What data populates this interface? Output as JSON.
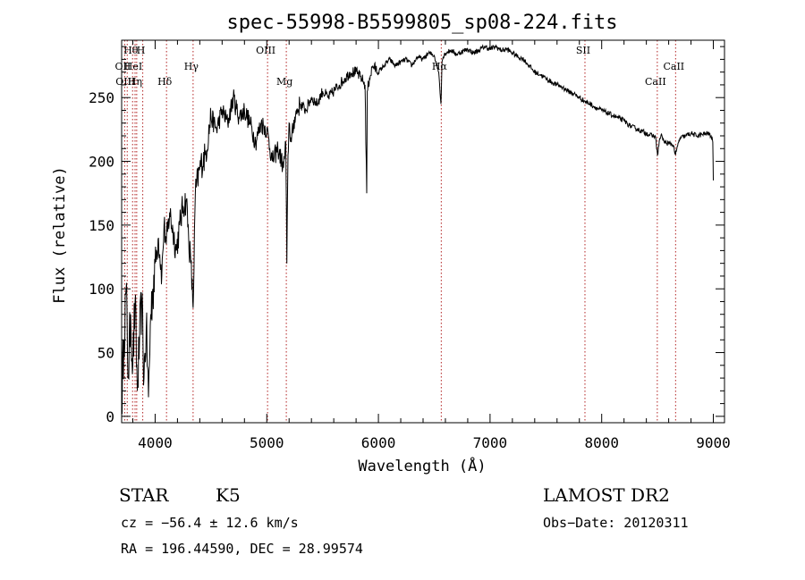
{
  "chart_data": {
    "type": "line",
    "title": "spec-55998-B5599805_sp08-224.fits",
    "xlabel": "Wavelength (Å)",
    "ylabel": "Flux (relative)",
    "xlim": [
      3700,
      9100
    ],
    "ylim": [
      -5,
      295
    ],
    "xticks": [
      4000,
      5000,
      6000,
      7000,
      8000,
      9000
    ],
    "xtick_labels": [
      "4000",
      "5000",
      "6000",
      "7000",
      "8000",
      "9000"
    ],
    "yticks": [
      0,
      50,
      100,
      150,
      200,
      250
    ],
    "ytick_labels": [
      "0",
      "50",
      "100",
      "150",
      "200",
      "250"
    ],
    "grid": false,
    "series": [
      {
        "x": [
          3700,
          3720,
          3740,
          3760,
          3780,
          3800,
          3820,
          3840,
          3860,
          3880,
          3900,
          3920,
          3940,
          3960,
          3980,
          4000,
          4030,
          4060,
          4080,
          4100,
          4130,
          4160,
          4190,
          4220,
          4250,
          4280,
          4300,
          4320,
          4340,
          4360,
          4400,
          4450,
          4500,
          4550,
          4600,
          4650,
          4700,
          4750,
          4800,
          4850,
          4900,
          4950,
          5000,
          5050,
          5100,
          5150,
          5170,
          5180,
          5190,
          5200,
          5220,
          5250,
          5300,
          5350,
          5400,
          5450,
          5500,
          5550,
          5600,
          5650,
          5700,
          5750,
          5800,
          5850,
          5880,
          5895,
          5900,
          5920,
          5950,
          6000,
          6050,
          6100,
          6150,
          6200,
          6250,
          6300,
          6350,
          6400,
          6450,
          6500,
          6540,
          6560,
          6570,
          6580,
          6600,
          6650,
          6700,
          6750,
          6800,
          6850,
          6900,
          6950,
          7000,
          7050,
          7100,
          7150,
          7200,
          7250,
          7300,
          7350,
          7400,
          7450,
          7500,
          7550,
          7600,
          7650,
          7700,
          7750,
          7800,
          7850,
          7900,
          7950,
          8000,
          8050,
          8100,
          8150,
          8200,
          8250,
          8300,
          8350,
          8400,
          8450,
          8480,
          8500,
          8520,
          8540,
          8560,
          8600,
          8640,
          8662,
          8680,
          8700,
          8750,
          8800,
          8850,
          8900,
          8950,
          8980,
          8995,
          9000
        ],
        "y": [
          10,
          60,
          100,
          30,
          80,
          40,
          90,
          20,
          60,
          90,
          30,
          70,
          15,
          80,
          100,
          120,
          140,
          110,
          150,
          135,
          160,
          145,
          130,
          150,
          165,
          170,
          140,
          120,
          85,
          175,
          195,
          205,
          235,
          225,
          240,
          230,
          250,
          235,
          240,
          230,
          215,
          230,
          225,
          200,
          210,
          195,
          215,
          120,
          205,
          230,
          215,
          235,
          245,
          240,
          250,
          245,
          255,
          250,
          255,
          260,
          265,
          270,
          270,
          265,
          260,
          175,
          255,
          265,
          275,
          270,
          275,
          280,
          275,
          278,
          280,
          275,
          282,
          280,
          285,
          283,
          270,
          245,
          278,
          282,
          285,
          287,
          284,
          286,
          288,
          285,
          287,
          290,
          288,
          290,
          287,
          288,
          285,
          282,
          280,
          275,
          270,
          268,
          265,
          262,
          260,
          258,
          255,
          253,
          250,
          247,
          245,
          242,
          240,
          238,
          236,
          234,
          232,
          228,
          226,
          224,
          222,
          220,
          220,
          205,
          218,
          220,
          215,
          214,
          213,
          205,
          212,
          218,
          220,
          222,
          220,
          221,
          222,
          220,
          215,
          185
        ]
      }
    ],
    "line_labels": [
      {
        "label": "Hθ",
        "x": 3798,
        "row": 1
      },
      {
        "label": "H",
        "x": 3889,
        "row": 1
      },
      {
        "label": "OII",
        "x": 3727,
        "row": 2
      },
      {
        "label": "HeI",
        "x": 3820,
        "row": 2
      },
      {
        "label": "OIII",
        "x": 3750,
        "row": 3
      },
      {
        "label": "Hη",
        "x": 3835,
        "row": 3
      },
      {
        "label": "Hδ",
        "x": 4102,
        "row": 3
      },
      {
        "label": "Hγ",
        "x": 4340,
        "row": 2
      },
      {
        "label": "OIII",
        "x": 5007,
        "row": 1
      },
      {
        "label": "Mg",
        "x": 5175,
        "row": 3
      },
      {
        "label": "Hα",
        "x": 6563,
        "row": 2
      },
      {
        "label": "SII",
        "x": 7850,
        "row": 1
      },
      {
        "label": "CaII",
        "x": 8662,
        "row": 2
      },
      {
        "label": "CaII",
        "x": 8498,
        "row": 3
      }
    ],
    "vlines": [
      3727,
      3750,
      3798,
      3820,
      3835,
      3889,
      4102,
      4340,
      5007,
      5175,
      6563,
      7850,
      8498,
      8662
    ]
  },
  "info": {
    "object_class": "STAR",
    "subclass": "K5",
    "survey": "LAMOST DR2",
    "redshift_text": "cz = −56.4 ± 12.6 km/s",
    "obs_date": "Obs−Date: 20120311",
    "coords": "RA = 196.44590, DEC =  28.99574"
  }
}
